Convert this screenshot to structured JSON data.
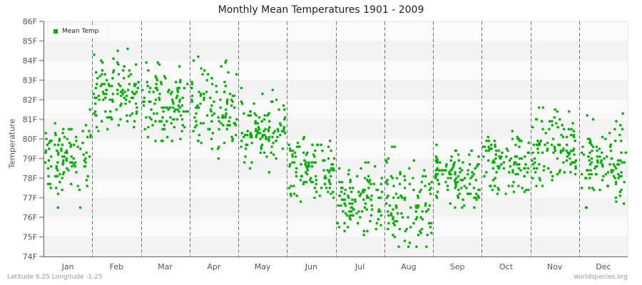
{
  "title": "Monthly Mean Temperatures 1901 - 2009",
  "footer": {
    "location": "Latitude 6.25 Longitude -1.25",
    "source": "worldspecies.org"
  },
  "legend": {
    "label": "Mean Temp",
    "color": "#00b000"
  },
  "colors": {
    "point": "#00b000",
    "band_light": "#fafafa",
    "band_dark": "#f3f3f3",
    "axis": "#666666",
    "separator": "#777777"
  },
  "chart_data": {
    "type": "scatter",
    "title": "Monthly Mean Temperatures 1901 - 2009",
    "xlabel": "",
    "ylabel": "Temperature",
    "ylim": [
      74,
      86
    ],
    "y_ticks": [
      "74F",
      "75F",
      "76F",
      "77F",
      "78F",
      "79F",
      "80F",
      "81F",
      "82F",
      "83F",
      "84F",
      "85F",
      "86F"
    ],
    "categories": [
      "Jan",
      "Feb",
      "Mar",
      "Apr",
      "May",
      "Jun",
      "Jul",
      "Aug",
      "Sep",
      "Oct",
      "Nov",
      "Dec"
    ],
    "grid": "alternating horizontal bands, dashed vertical month separators",
    "legend_position": "top-left inside plot",
    "years": [
      1901,
      2009
    ],
    "series": [
      {
        "name": "Mean Temp",
        "monthly_summary": [
          {
            "month": "Jan",
            "min": 76.5,
            "max": 82.2,
            "mean": 79.0
          },
          {
            "month": "Feb",
            "min": 80.4,
            "max": 85.3,
            "mean": 82.3
          },
          {
            "month": "Mar",
            "min": 79.9,
            "max": 85.1,
            "mean": 81.8
          },
          {
            "month": "Apr",
            "min": 78.4,
            "max": 84.2,
            "mean": 81.6
          },
          {
            "month": "May",
            "min": 77.7,
            "max": 82.6,
            "mean": 80.2
          },
          {
            "month": "Jun",
            "min": 76.8,
            "max": 81.3,
            "mean": 78.5
          },
          {
            "month": "Jul",
            "min": 74.7,
            "max": 79.1,
            "mean": 76.8
          },
          {
            "month": "Aug",
            "min": 74.5,
            "max": 79.6,
            "mean": 76.8
          },
          {
            "month": "Sep",
            "min": 76.5,
            "max": 80.5,
            "mean": 78.0
          },
          {
            "month": "Oct",
            "min": 76.5,
            "max": 81.0,
            "mean": 78.8
          },
          {
            "month": "Nov",
            "min": 77.6,
            "max": 82.3,
            "mean": 79.6
          },
          {
            "month": "Dec",
            "min": 76.3,
            "max": 81.7,
            "mean": 78.8
          }
        ]
      }
    ]
  }
}
